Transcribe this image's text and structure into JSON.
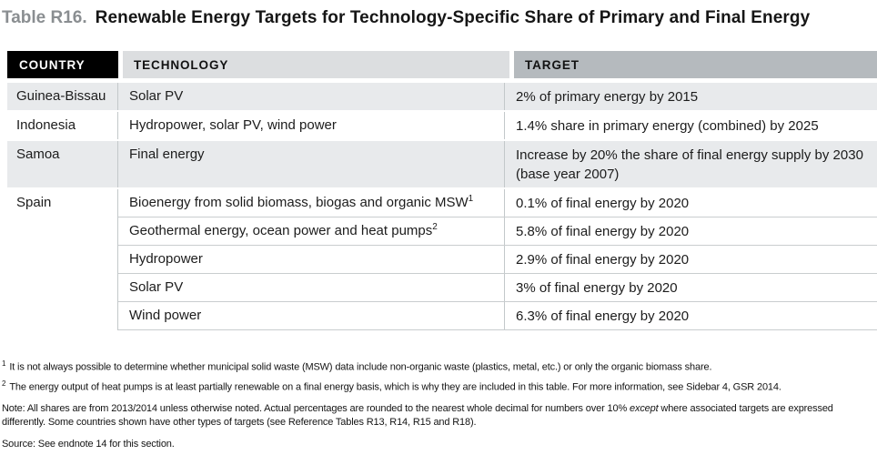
{
  "title": {
    "label": "Table R16.",
    "text": "Renewable Energy Targets for Technology-Specific Share of Primary and Final Energy"
  },
  "colors": {
    "header_country_bg": "#000000",
    "header_country_text": "#ffffff",
    "header_tech_bg": "#dcdee0",
    "header_target_bg": "#b5babe",
    "row_shaded_bg": "#e8eaec",
    "row_plain_bg": "#ffffff",
    "rule": "#c9cdcf"
  },
  "table": {
    "headers": {
      "country": "COUNTRY",
      "technology": "TECHNOLOGY",
      "target": "TARGET"
    },
    "groups": [
      {
        "country": "Guinea-Bissau",
        "shaded": true,
        "rows": [
          {
            "technology": "Solar PV",
            "target": "2% of primary energy by 2015"
          }
        ]
      },
      {
        "country": "Indonesia",
        "shaded": false,
        "rows": [
          {
            "technology": "Hydropower, solar PV, wind power",
            "target": "1.4% share in primary energy (combined) by 2025"
          }
        ]
      },
      {
        "country": "Samoa",
        "shaded": true,
        "rows": [
          {
            "technology": "Final energy",
            "target": "Increase by 20% the share of final energy supply by 2030 (base year 2007)"
          }
        ]
      },
      {
        "country": "Spain",
        "shaded": false,
        "rows": [
          {
            "technology": "Bioenergy from solid biomass, biogas and organic MSW",
            "tech_sup": "1",
            "target": "0.1% of final energy by 2020"
          },
          {
            "technology": "Geothermal energy, ocean power and heat pumps",
            "tech_sup": "2",
            "target": "5.8% of final energy by 2020"
          },
          {
            "technology": "Hydropower",
            "target": "2.9% of final energy by 2020"
          },
          {
            "technology": "Solar PV",
            "target": "3% of final energy by 2020"
          },
          {
            "technology": "Wind power",
            "target": "6.3% of final energy by 2020"
          }
        ]
      }
    ]
  },
  "footnotes": [
    {
      "marker": "1",
      "text": "It is not always possible to determine whether municipal solid waste (MSW) data include non-organic waste (plastics, metal, etc.) or only the organic biomass share."
    },
    {
      "marker": "2",
      "text": "The energy output of heat pumps is at least partially renewable on a final energy basis, which is why they are included in this table. For more information, see Sidebar 4, GSR 2014."
    }
  ],
  "note": {
    "prefix": "Note: All shares are from 2013/2014 unless otherwise noted. Actual percentages are rounded to the nearest whole decimal for numbers over 10% ",
    "italic": "except",
    "suffix": " where associated targets are expressed differently. Some countries shown have other types of targets (see Reference Tables R13, R14, R15 and R18)."
  },
  "source": "Source: See endnote 14 for this section."
}
